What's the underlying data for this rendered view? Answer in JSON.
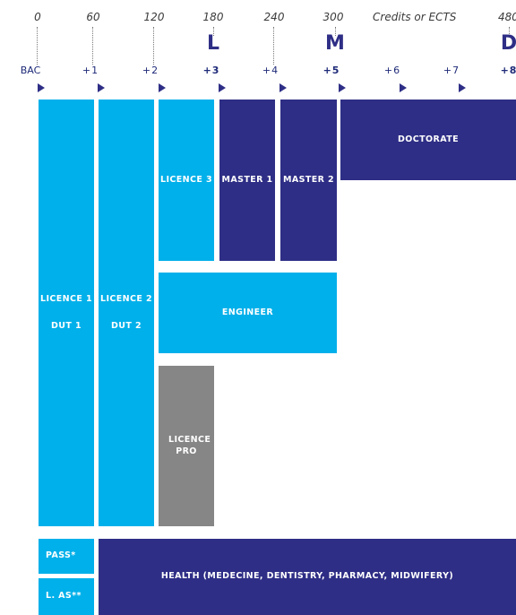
{
  "axis": {
    "credits": [
      "0",
      "60",
      "120",
      "180",
      "240",
      "300",
      "480"
    ],
    "credits_label": "Credits or ECTS",
    "cycles": [
      "L",
      "M",
      "D"
    ],
    "years": [
      "BAC",
      "+1",
      "+2",
      "+3",
      "+4",
      "+5",
      "+6",
      "+7",
      "+8"
    ]
  },
  "blocks": {
    "licence1": "LICENCE 1",
    "dut1": "DUT 1",
    "licence2": "LICENCE 2",
    "dut2": "DUT 2",
    "licence3": "LICENCE 3",
    "master1": "MASTER 1",
    "master2": "MASTER 2",
    "doctorate": "DOCTORATE",
    "engineer": "ENGINEER",
    "licence_pro": "LICENCE PRO",
    "pass": "PASS*",
    "las": "L. AS**",
    "health": "HEALTH (MEDECINE, DENTISTRY, PHARMACY, MIDWIFERY)"
  },
  "colors": {
    "licence": "#00b0ea",
    "master_doctorate": "#2e2e86",
    "licence_pro": "#868686",
    "arrow": "#2e2e86"
  }
}
